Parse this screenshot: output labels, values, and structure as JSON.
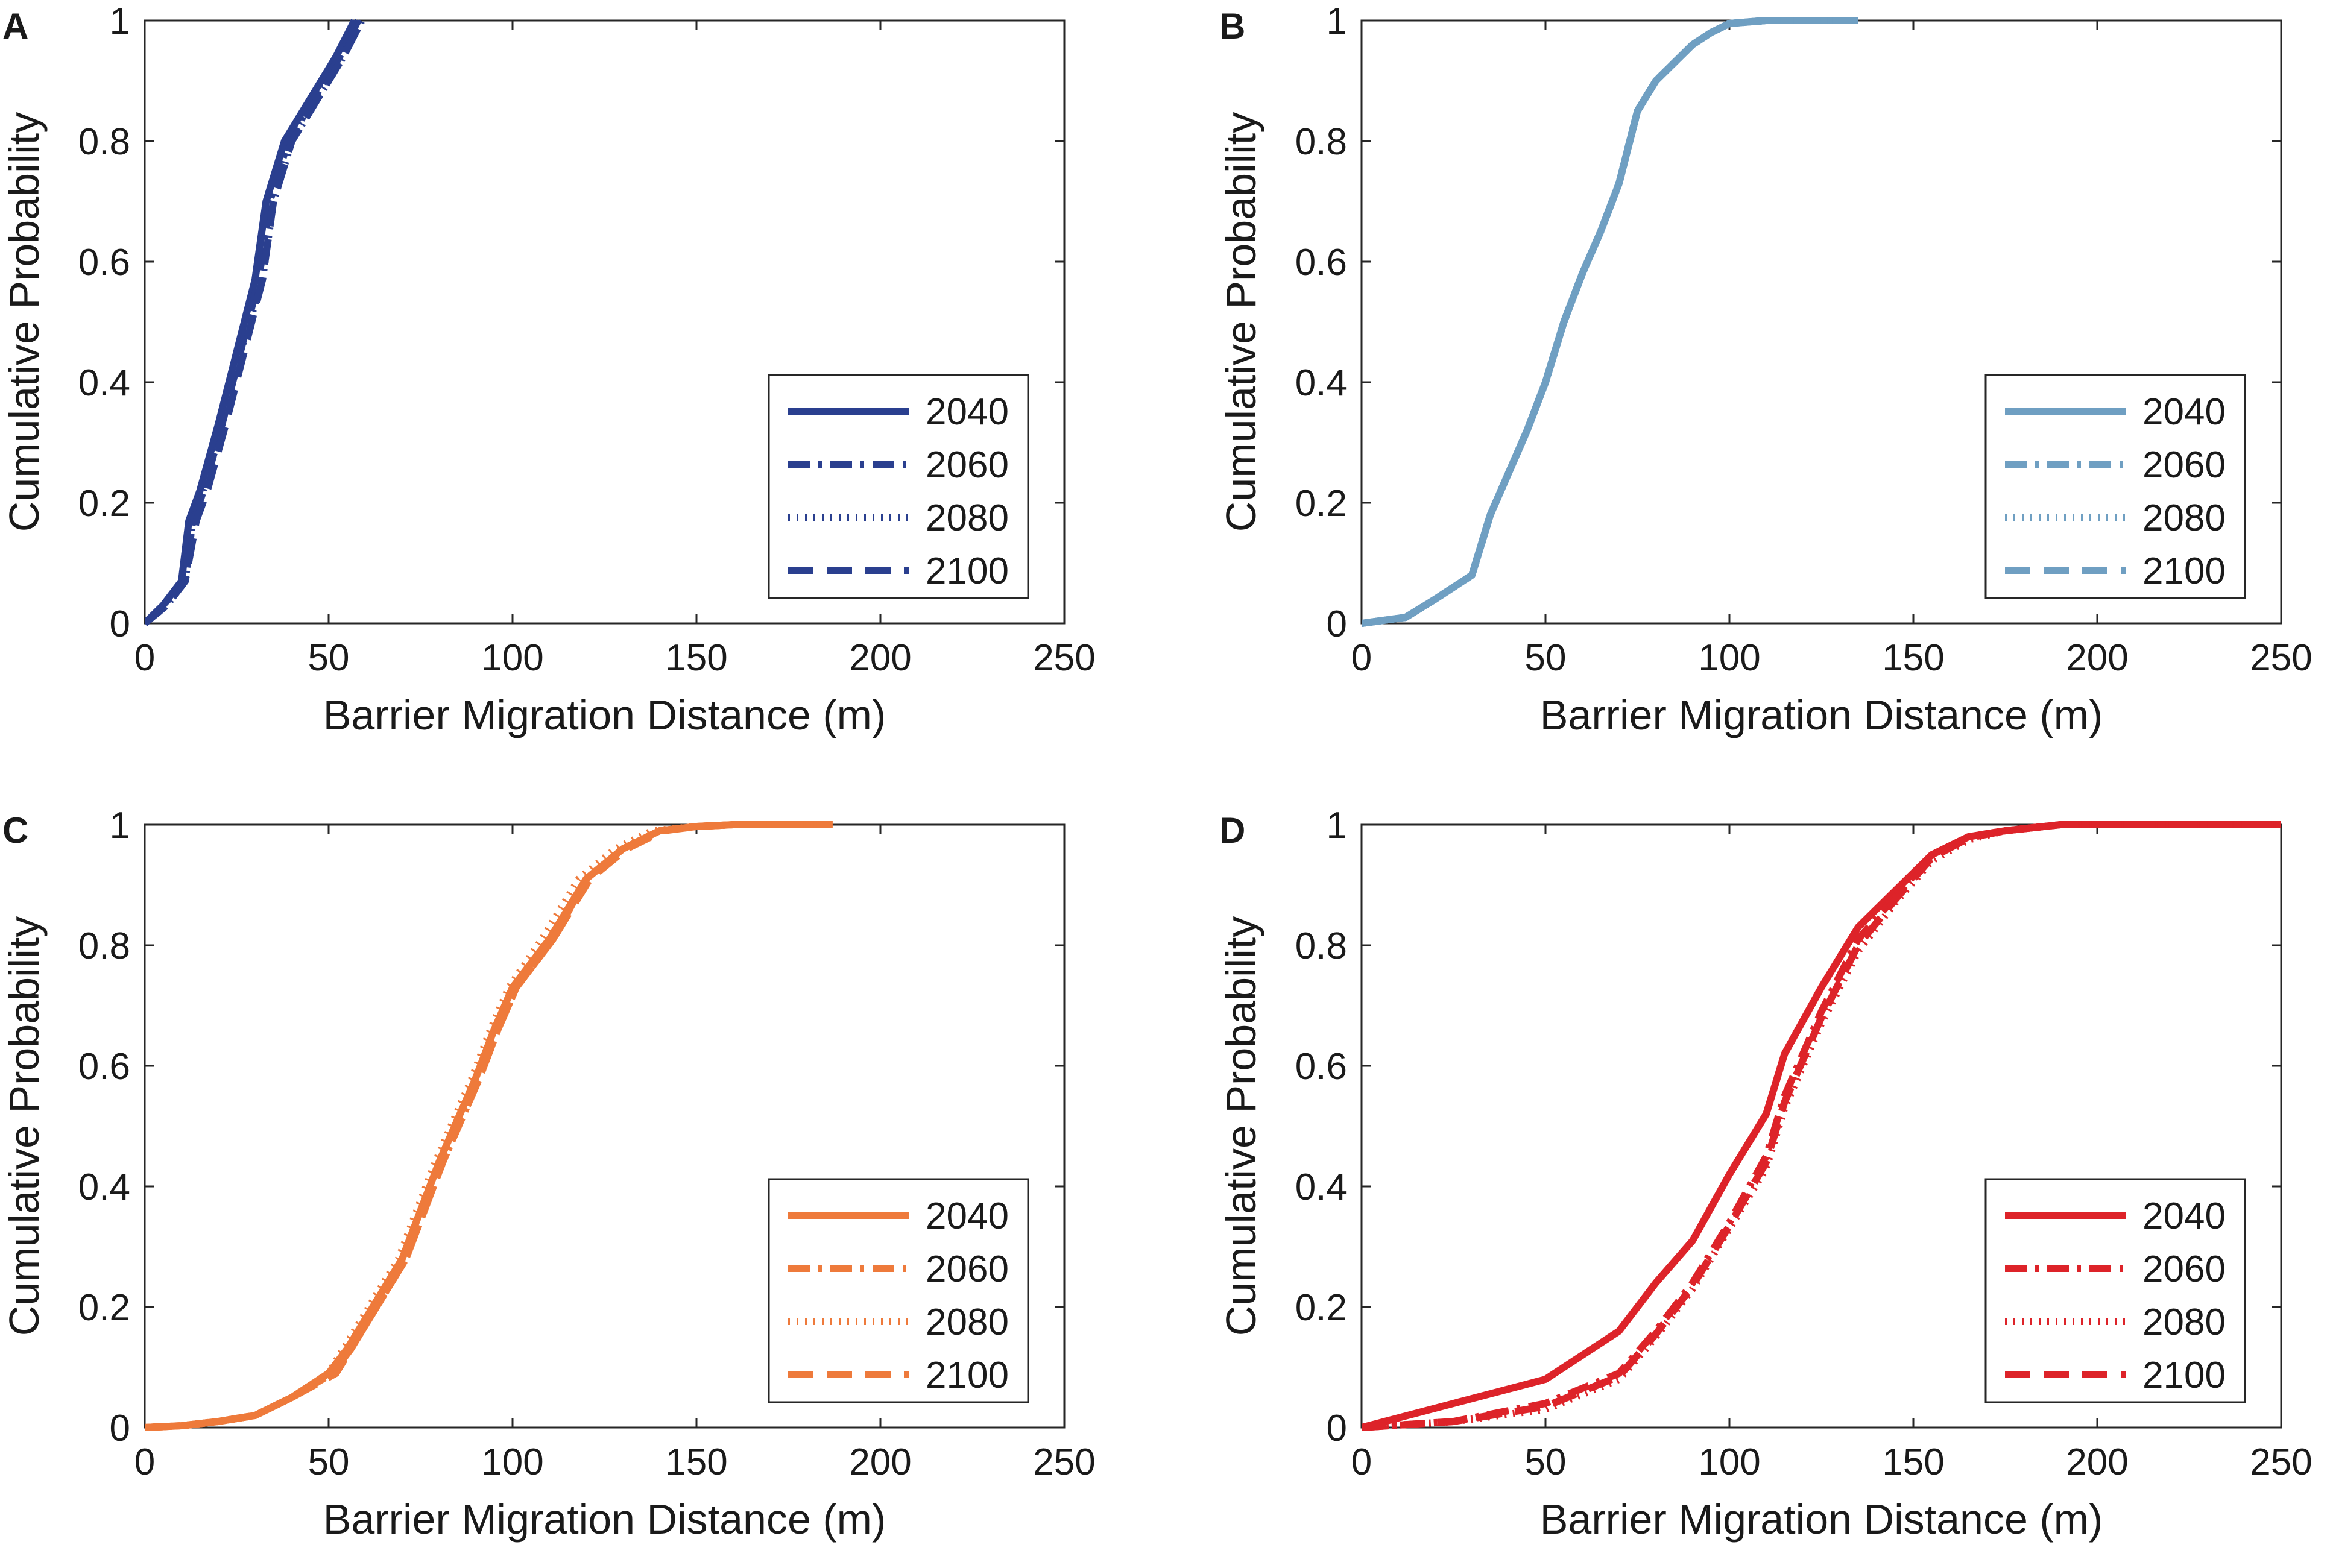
{
  "figure": {
    "colors": {
      "A": "#2a3f8f",
      "B": "#6f9fc2",
      "C": "#ee7a3b",
      "D": "#dd2329",
      "axis": "#262626"
    },
    "line_styles": {
      "2040": "solid",
      "2060": "dash-dot",
      "2080": "dotted",
      "2100": "dashed"
    }
  },
  "chart_data": [
    {
      "panel": "A",
      "type": "line",
      "xlabel": "Barrier Migration Distance (m)",
      "ylabel": "Cumulative Probability",
      "xlim": [
        0,
        250
      ],
      "ylim": [
        0,
        1
      ],
      "xticks": [
        "0",
        "50",
        "100",
        "150",
        "200",
        "250"
      ],
      "yticks": [
        "0",
        "0.2",
        "0.4",
        "0.6",
        "0.8",
        "1"
      ],
      "legend": [
        "2040",
        "2060",
        "2080",
        "2100"
      ],
      "legend_position": "bottom-right",
      "series": [
        {
          "name": "2040",
          "style": "solid",
          "x": [
            0,
            5,
            10,
            12,
            15,
            20,
            25,
            30,
            33,
            38,
            45,
            52,
            57
          ],
          "y": [
            0,
            0.03,
            0.07,
            0.17,
            0.22,
            0.33,
            0.45,
            0.57,
            0.7,
            0.8,
            0.87,
            0.94,
            1.0
          ]
        },
        {
          "name": "2060",
          "style": "dash-dot",
          "x": [
            0,
            5,
            11,
            13,
            16,
            21,
            26,
            31,
            34,
            39,
            46,
            53,
            58
          ],
          "y": [
            0,
            0.03,
            0.07,
            0.17,
            0.22,
            0.33,
            0.45,
            0.57,
            0.7,
            0.8,
            0.87,
            0.94,
            1.0
          ]
        },
        {
          "name": "2080",
          "style": "dotted",
          "x": [
            0,
            6,
            11,
            13,
            16,
            21,
            26,
            32,
            35,
            40,
            47,
            54,
            59
          ],
          "y": [
            0,
            0.03,
            0.07,
            0.17,
            0.22,
            0.33,
            0.45,
            0.57,
            0.7,
            0.8,
            0.87,
            0.94,
            1.0
          ]
        },
        {
          "name": "2100",
          "style": "dashed",
          "x": [
            0,
            6,
            11,
            14,
            17,
            22,
            27,
            32,
            35,
            40,
            47,
            54,
            59
          ],
          "y": [
            0,
            0.03,
            0.07,
            0.17,
            0.22,
            0.33,
            0.45,
            0.57,
            0.7,
            0.8,
            0.87,
            0.94,
            1.0
          ]
        }
      ]
    },
    {
      "panel": "B",
      "type": "line",
      "xlabel": "Barrier Migration Distance (m)",
      "ylabel": "Cumulative Probability",
      "xlim": [
        0,
        250
      ],
      "ylim": [
        0,
        1
      ],
      "xticks": [
        "0",
        "50",
        "100",
        "150",
        "200",
        "250"
      ],
      "yticks": [
        "0",
        "0.2",
        "0.4",
        "0.6",
        "0.8",
        "1"
      ],
      "legend": [
        "2040",
        "2060",
        "2080",
        "2100"
      ],
      "legend_position": "bottom-right",
      "series": [
        {
          "name": "2040",
          "style": "solid",
          "x": [
            0,
            12,
            20,
            30,
            35,
            40,
            45,
            50,
            55,
            60,
            65,
            70,
            75,
            80,
            85,
            90,
            95,
            100,
            110,
            120,
            135
          ],
          "y": [
            0,
            0.01,
            0.04,
            0.08,
            0.18,
            0.25,
            0.32,
            0.4,
            0.5,
            0.58,
            0.65,
            0.73,
            0.85,
            0.9,
            0.93,
            0.96,
            0.98,
            0.995,
            1.0,
            1.0,
            1.0
          ]
        },
        {
          "name": "2060",
          "style": "dash-dot",
          "x": [
            0,
            12,
            20,
            30,
            35,
            40,
            45,
            50,
            55,
            60,
            65,
            70,
            75,
            80,
            85,
            90,
            95,
            100,
            110,
            120,
            135
          ],
          "y": [
            0,
            0.01,
            0.04,
            0.08,
            0.18,
            0.25,
            0.32,
            0.4,
            0.5,
            0.58,
            0.65,
            0.73,
            0.85,
            0.9,
            0.93,
            0.96,
            0.98,
            0.995,
            1.0,
            1.0,
            1.0
          ]
        },
        {
          "name": "2080",
          "style": "dotted",
          "x": [
            0,
            12,
            20,
            30,
            35,
            40,
            45,
            50,
            55,
            60,
            65,
            70,
            75,
            80,
            85,
            90,
            95,
            100,
            110,
            120,
            135
          ],
          "y": [
            0,
            0.01,
            0.04,
            0.08,
            0.18,
            0.25,
            0.32,
            0.4,
            0.5,
            0.58,
            0.65,
            0.73,
            0.85,
            0.9,
            0.93,
            0.96,
            0.98,
            0.995,
            1.0,
            1.0,
            1.0
          ]
        },
        {
          "name": "2100",
          "style": "dashed",
          "x": [
            0,
            12,
            20,
            30,
            35,
            40,
            45,
            50,
            55,
            60,
            65,
            70,
            75,
            80,
            85,
            90,
            95,
            100,
            110,
            120,
            135
          ],
          "y": [
            0,
            0.01,
            0.04,
            0.08,
            0.18,
            0.25,
            0.32,
            0.4,
            0.5,
            0.58,
            0.65,
            0.73,
            0.85,
            0.9,
            0.93,
            0.96,
            0.98,
            0.995,
            1.0,
            1.0,
            1.0
          ]
        }
      ]
    },
    {
      "panel": "C",
      "type": "line",
      "xlabel": "Barrier Migration Distance (m)",
      "ylabel": "Cumulative Probability",
      "xlim": [
        0,
        250
      ],
      "ylim": [
        0,
        1
      ],
      "xticks": [
        "0",
        "50",
        "100",
        "150",
        "200",
        "250"
      ],
      "yticks": [
        "0",
        "0.2",
        "0.4",
        "0.6",
        "0.8",
        "1"
      ],
      "legend": [
        "2040",
        "2060",
        "2080",
        "2100"
      ],
      "legend_position": "bottom-right",
      "series": [
        {
          "name": "2040",
          "style": "solid",
          "x": [
            0,
            10,
            20,
            30,
            40,
            50,
            55,
            60,
            65,
            70,
            75,
            80,
            85,
            90,
            95,
            100,
            110,
            120,
            130,
            140,
            150,
            160,
            175,
            187
          ],
          "y": [
            0,
            0.003,
            0.01,
            0.02,
            0.05,
            0.09,
            0.13,
            0.18,
            0.23,
            0.28,
            0.36,
            0.44,
            0.51,
            0.58,
            0.66,
            0.73,
            0.81,
            0.91,
            0.96,
            0.99,
            0.997,
            1.0,
            1.0,
            1.0
          ]
        },
        {
          "name": "2060",
          "style": "dash-dot",
          "x": [
            0,
            10,
            20,
            30,
            40,
            51,
            56,
            61,
            66,
            71,
            76,
            81,
            86,
            91,
            96,
            101,
            111,
            120,
            130,
            140,
            150,
            160,
            175,
            187
          ],
          "y": [
            0,
            0.003,
            0.01,
            0.02,
            0.05,
            0.09,
            0.13,
            0.18,
            0.23,
            0.28,
            0.36,
            0.44,
            0.51,
            0.58,
            0.66,
            0.73,
            0.81,
            0.91,
            0.96,
            0.99,
            0.997,
            1.0,
            1.0,
            1.0
          ]
        },
        {
          "name": "2080",
          "style": "dotted",
          "x": [
            0,
            10,
            20,
            30,
            40,
            50,
            54,
            59,
            64,
            69,
            74,
            79,
            84,
            89,
            94,
            99,
            108,
            118,
            128,
            138,
            150,
            160,
            175,
            187
          ],
          "y": [
            0,
            0.003,
            0.01,
            0.02,
            0.05,
            0.09,
            0.13,
            0.18,
            0.23,
            0.28,
            0.36,
            0.44,
            0.51,
            0.58,
            0.66,
            0.73,
            0.81,
            0.91,
            0.96,
            0.99,
            0.997,
            1.0,
            1.0,
            1.0
          ]
        },
        {
          "name": "2100",
          "style": "dashed",
          "x": [
            0,
            10,
            20,
            30,
            40,
            52,
            56,
            61,
            66,
            71,
            76,
            81,
            86,
            91,
            96,
            101,
            111,
            121,
            131,
            141,
            150,
            160,
            175,
            187
          ],
          "y": [
            0,
            0.003,
            0.01,
            0.02,
            0.05,
            0.09,
            0.13,
            0.18,
            0.23,
            0.28,
            0.36,
            0.44,
            0.51,
            0.58,
            0.66,
            0.73,
            0.81,
            0.91,
            0.96,
            0.99,
            0.997,
            1.0,
            1.0,
            1.0
          ]
        }
      ]
    },
    {
      "panel": "D",
      "type": "line",
      "xlabel": "Barrier Migration Distance (m)",
      "ylabel": "Cumulative Probability",
      "xlim": [
        0,
        250
      ],
      "ylim": [
        0,
        1
      ],
      "xticks": [
        "0",
        "50",
        "100",
        "150",
        "200",
        "250"
      ],
      "yticks": [
        "0",
        "0.2",
        "0.4",
        "0.6",
        "0.8",
        "1"
      ],
      "legend": [
        "2040",
        "2060",
        "2080",
        "2100"
      ],
      "legend_position": "bottom-right",
      "series": [
        {
          "name": "2040",
          "style": "solid",
          "x": [
            0,
            25,
            50,
            70,
            80,
            90,
            100,
            110,
            115,
            125,
            135,
            145,
            155,
            165,
            175,
            190,
            210,
            250
          ],
          "y": [
            0,
            0.04,
            0.08,
            0.16,
            0.24,
            0.31,
            0.42,
            0.52,
            0.62,
            0.73,
            0.83,
            0.89,
            0.95,
            0.98,
            0.99,
            1.0,
            1.0,
            1.0
          ]
        },
        {
          "name": "2060",
          "style": "dash-dot",
          "x": [
            0,
            25,
            50,
            70,
            80,
            90,
            100,
            110,
            115,
            125,
            135,
            145,
            155,
            165,
            175,
            190,
            210,
            250
          ],
          "y": [
            0,
            0.01,
            0.04,
            0.09,
            0.16,
            0.24,
            0.34,
            0.45,
            0.55,
            0.69,
            0.81,
            0.88,
            0.95,
            0.98,
            0.99,
            1.0,
            1.0,
            1.0
          ]
        },
        {
          "name": "2080",
          "style": "dotted",
          "x": [
            0,
            25,
            50,
            70,
            80,
            90,
            100,
            110,
            115,
            125,
            135,
            145,
            155,
            165,
            175,
            190,
            210,
            250
          ],
          "y": [
            0,
            0.01,
            0.03,
            0.08,
            0.15,
            0.23,
            0.33,
            0.43,
            0.53,
            0.67,
            0.79,
            0.87,
            0.94,
            0.975,
            0.99,
            1.0,
            1.0,
            1.0
          ]
        },
        {
          "name": "2100",
          "style": "dashed",
          "x": [
            0,
            25,
            50,
            70,
            80,
            90,
            100,
            110,
            115,
            125,
            135,
            145,
            155,
            165,
            175,
            190,
            210,
            250
          ],
          "y": [
            0,
            0.01,
            0.035,
            0.085,
            0.155,
            0.235,
            0.335,
            0.44,
            0.54,
            0.68,
            0.8,
            0.875,
            0.945,
            0.978,
            0.99,
            1.0,
            1.0,
            1.0
          ]
        }
      ]
    }
  ]
}
